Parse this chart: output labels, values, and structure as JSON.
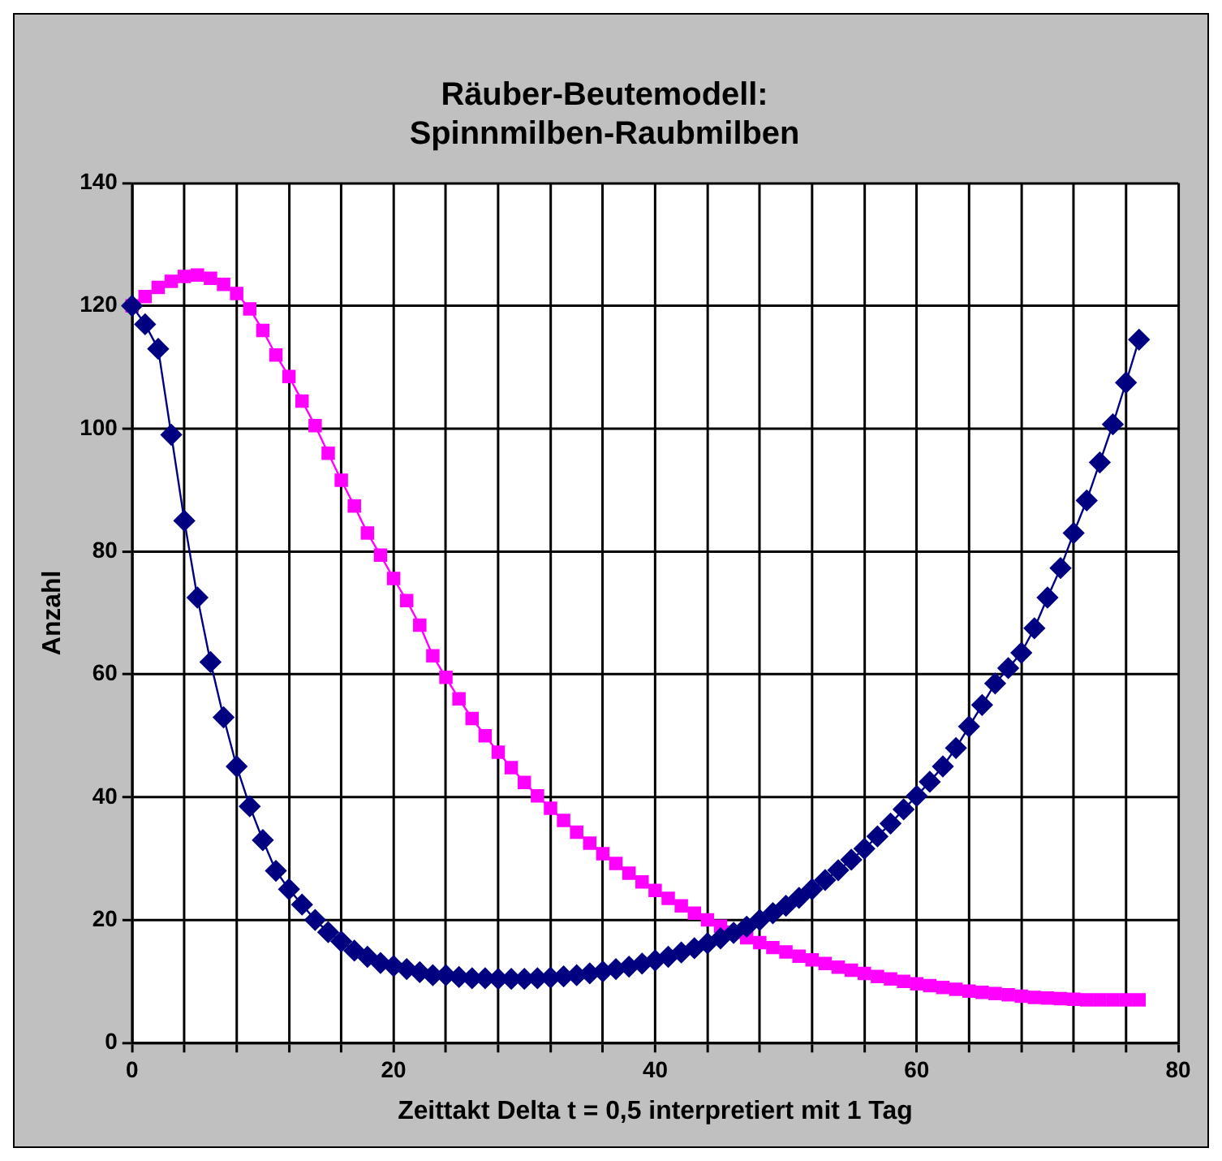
{
  "chart_data": {
    "type": "line",
    "title": "Räuber-Beutemodell:\nSpinnmilben-Raubmilben",
    "xlabel": "Zeittakt Delta t = 0,5 interpretiert mit 1 Tag",
    "ylabel": "Anzahl",
    "x": [
      0,
      1,
      2,
      3,
      4,
      5,
      6,
      7,
      8,
      9,
      10,
      11,
      12,
      13,
      14,
      15,
      16,
      17,
      18,
      19,
      20,
      21,
      22,
      23,
      24,
      25,
      26,
      27,
      28,
      29,
      30,
      31,
      32,
      33,
      34,
      35,
      36,
      37,
      38,
      39,
      40,
      41,
      42,
      43,
      44,
      45,
      46,
      47,
      48,
      49,
      50,
      51,
      52,
      53,
      54,
      55,
      56,
      57,
      58,
      59,
      60,
      61,
      62,
      63,
      64,
      65,
      66,
      67,
      68,
      69,
      70,
      71,
      72,
      73,
      74,
      75,
      76,
      77
    ],
    "series": [
      {
        "color": "#000080",
        "marker": "diamond",
        "values": [
          120,
          117,
          113,
          99,
          85,
          72.5,
          62,
          53,
          45,
          38.5,
          33,
          28,
          25,
          22.5,
          20,
          18,
          16.5,
          15,
          14,
          13,
          12.5,
          12,
          11.5,
          11,
          11,
          10.7,
          10.5,
          10.5,
          10.4,
          10.4,
          10.4,
          10.5,
          10.6,
          10.8,
          11,
          11.3,
          11.6,
          12,
          12.4,
          12.9,
          13.4,
          14,
          14.7,
          15.4,
          16.2,
          17,
          17.9,
          18.9,
          20,
          21.1,
          22.3,
          23.6,
          25,
          26.5,
          28.1,
          29.8,
          31.6,
          33.6,
          35.7,
          38,
          40.2,
          42.5,
          45,
          48,
          51.5,
          55,
          58.5,
          61,
          63.5,
          67.5,
          72.5,
          77.3,
          83,
          88.3,
          94.5,
          100.7,
          107.5,
          114.5
        ]
      },
      {
        "color": "#ff00ff",
        "marker": "square",
        "values": [
          120,
          121.5,
          123,
          124,
          124.8,
          125,
          124.5,
          123.5,
          122,
          119.5,
          116,
          112,
          108.5,
          104.5,
          100.5,
          96,
          91.6,
          87.4,
          83,
          79.4,
          75.6,
          72,
          68,
          63,
          59.5,
          56,
          52.8,
          50,
          47.3,
          44.8,
          42.4,
          40.2,
          38.2,
          36.2,
          34.3,
          32.5,
          30.8,
          29.2,
          27.6,
          26.2,
          24.8,
          23.5,
          22.3,
          21.1,
          20,
          19,
          18,
          17.1,
          16.3,
          15.5,
          14.8,
          14.1,
          13.5,
          12.9,
          12.3,
          11.8,
          11.3,
          10.8,
          10.4,
          10,
          9.6,
          9.3,
          9,
          8.7,
          8.4,
          8.2,
          8,
          7.8,
          7.6,
          7.4,
          7.3,
          7.2,
          7.1,
          7,
          7,
          7,
          7,
          7
        ]
      }
    ],
    "xlim": [
      0,
      80
    ],
    "xticks": [
      0,
      {
        "value": 4,
        "label": null
      },
      {
        "value": 8,
        "label": null
      },
      {
        "value": 12,
        "label": null
      },
      {
        "value": 16,
        "label": null
      },
      20,
      {
        "value": 24,
        "label": null
      },
      {
        "value": 28,
        "label": null
      },
      {
        "value": 32,
        "label": null
      },
      {
        "value": 36,
        "label": null
      },
      40,
      {
        "value": 44,
        "label": null
      },
      {
        "value": 48,
        "label": null
      },
      {
        "value": 52,
        "label": null
      },
      {
        "value": 56,
        "label": null
      },
      60,
      {
        "value": 64,
        "label": null
      },
      {
        "value": 68,
        "label": null
      },
      {
        "value": 72,
        "label": null
      },
      {
        "value": 76,
        "label": null
      },
      80
    ],
    "ylim": [
      0,
      140
    ],
    "yticks": [
      0,
      20,
      40,
      60,
      80,
      100,
      120,
      140
    ],
    "grid": true,
    "legend": false,
    "line_style": "solid"
  }
}
